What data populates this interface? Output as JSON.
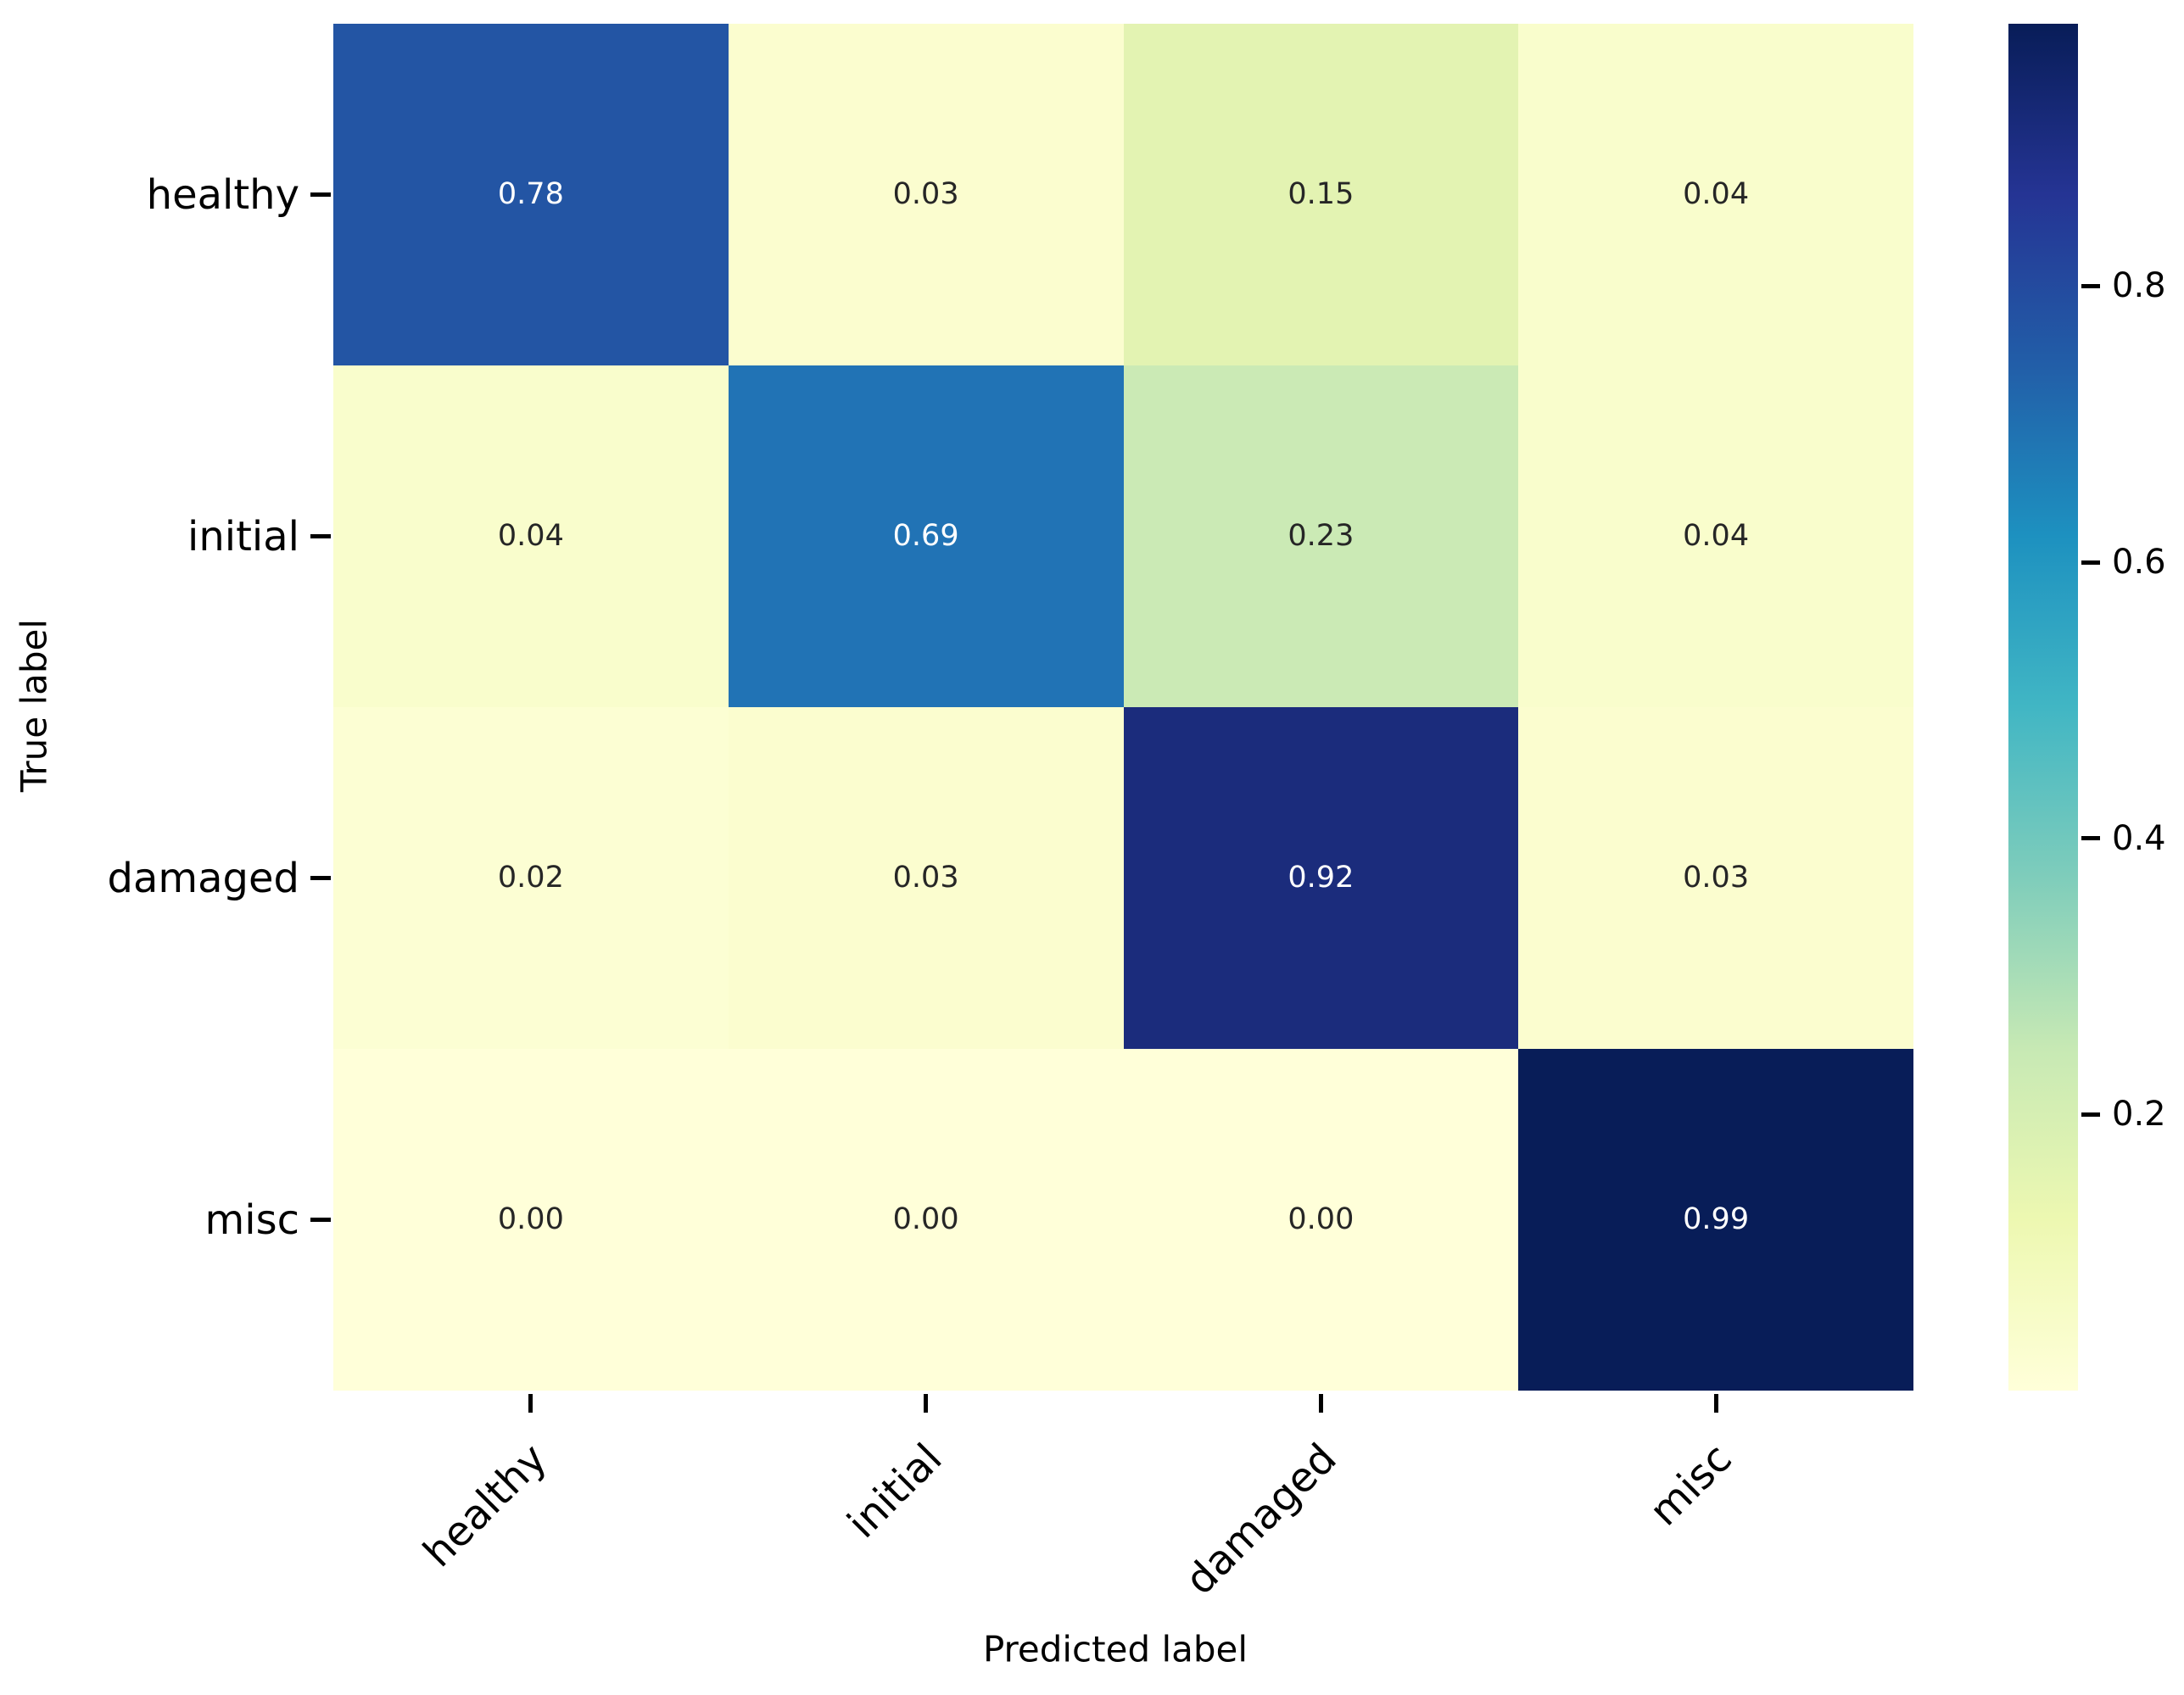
{
  "figure": {
    "background": "#ffffff"
  },
  "chart_data": {
    "type": "heatmap",
    "title": "",
    "xlabel": "Predicted label",
    "ylabel": "True label",
    "x_categories": [
      "healthy",
      "initial",
      "damaged",
      "misc"
    ],
    "y_categories": [
      "healthy",
      "initial",
      "damaged",
      "misc"
    ],
    "values": [
      [
        0.78,
        0.03,
        0.15,
        0.04
      ],
      [
        0.04,
        0.69,
        0.23,
        0.04
      ],
      [
        0.02,
        0.03,
        0.92,
        0.03
      ],
      [
        0.0,
        0.0,
        0.0,
        0.99
      ]
    ],
    "cell_labels": [
      [
        "0.78",
        "0.03",
        "0.15",
        "0.04"
      ],
      [
        "0.04",
        "0.69",
        "0.23",
        "0.04"
      ],
      [
        "0.02",
        "0.03",
        "0.92",
        "0.03"
      ],
      [
        "0.00",
        "0.00",
        "0.00",
        "0.99"
      ]
    ],
    "cell_colors": [
      [
        "#2355a4",
        "#fbfdcf",
        "#e3f3b2",
        "#f9fdcc"
      ],
      [
        "#f9fdcc",
        "#2173b5",
        "#cbeab5",
        "#f9fdcc"
      ],
      [
        "#fcfed3",
        "#fbfdcf",
        "#1b2c7c",
        "#fbfdcf"
      ],
      [
        "#ffffd9",
        "#ffffd9",
        "#ffffd9",
        "#081d58"
      ]
    ],
    "cell_text_colors": [
      [
        "#ffffff",
        "#262626",
        "#262626",
        "#262626"
      ],
      [
        "#262626",
        "#ffffff",
        "#262626",
        "#262626"
      ],
      [
        "#262626",
        "#262626",
        "#ffffff",
        "#262626"
      ],
      [
        "#262626",
        "#262626",
        "#262626",
        "#ffffff"
      ]
    ],
    "colormap": "YlGnBu",
    "vmin": 0,
    "vmax": 0.99,
    "grid": false,
    "legend_position": "colorbar-right",
    "colorbar": {
      "tick_labels": [
        "0.8",
        "0.6",
        "0.4",
        "0.2"
      ],
      "tick_values": [
        0.8,
        0.6,
        0.4,
        0.2
      ],
      "gradient_stops_top_to_bottom": [
        {
          "pos": 0,
          "color": "#081d58"
        },
        {
          "pos": 12.5,
          "color": "#253494"
        },
        {
          "pos": 25,
          "color": "#225ea8"
        },
        {
          "pos": 37.5,
          "color": "#1d91c0"
        },
        {
          "pos": 50,
          "color": "#41b6c4"
        },
        {
          "pos": 62.5,
          "color": "#7fcdbb"
        },
        {
          "pos": 75,
          "color": "#c7e9b4"
        },
        {
          "pos": 87.5,
          "color": "#edf8b1"
        },
        {
          "pos": 100,
          "color": "#ffffd9"
        }
      ]
    }
  }
}
